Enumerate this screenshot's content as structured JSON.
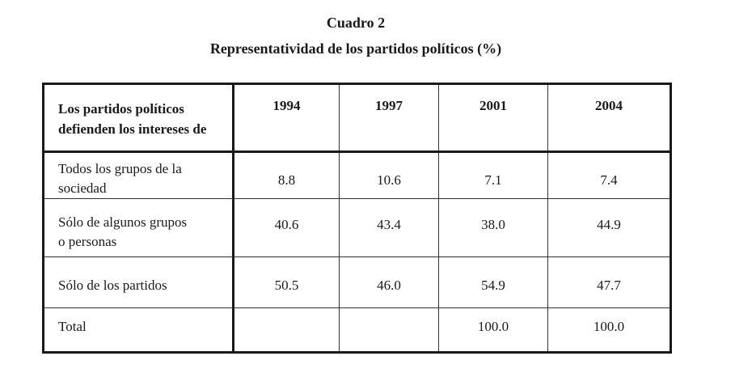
{
  "heading": {
    "title": "Cuadro 2",
    "subtitle": "Representatividad de los partidos políticos (%)"
  },
  "table": {
    "header": {
      "label_line1": "Los partidos políticos",
      "label_line2": "defienden los intereses de",
      "years": [
        "1994",
        "1997",
        "2001",
        "2004"
      ]
    },
    "rows": [
      {
        "label_line1": "Todos los grupos de la",
        "label_line2": "sociedad",
        "values": [
          "8.8",
          "10.6",
          "7.1",
          "7.4"
        ]
      },
      {
        "label_line1": "Sólo de algunos grupos",
        "label_line2": "o personas",
        "values": [
          "40.6",
          "43.4",
          "38.0",
          "44.9"
        ]
      },
      {
        "label_line1": "Sólo de los partidos",
        "label_line2": "",
        "values": [
          "50.5",
          "46.0",
          "54.9",
          "47.7"
        ]
      },
      {
        "label_line1": "Total",
        "label_line2": "",
        "values": [
          "",
          "",
          "100.0",
          "100.0"
        ]
      }
    ]
  }
}
